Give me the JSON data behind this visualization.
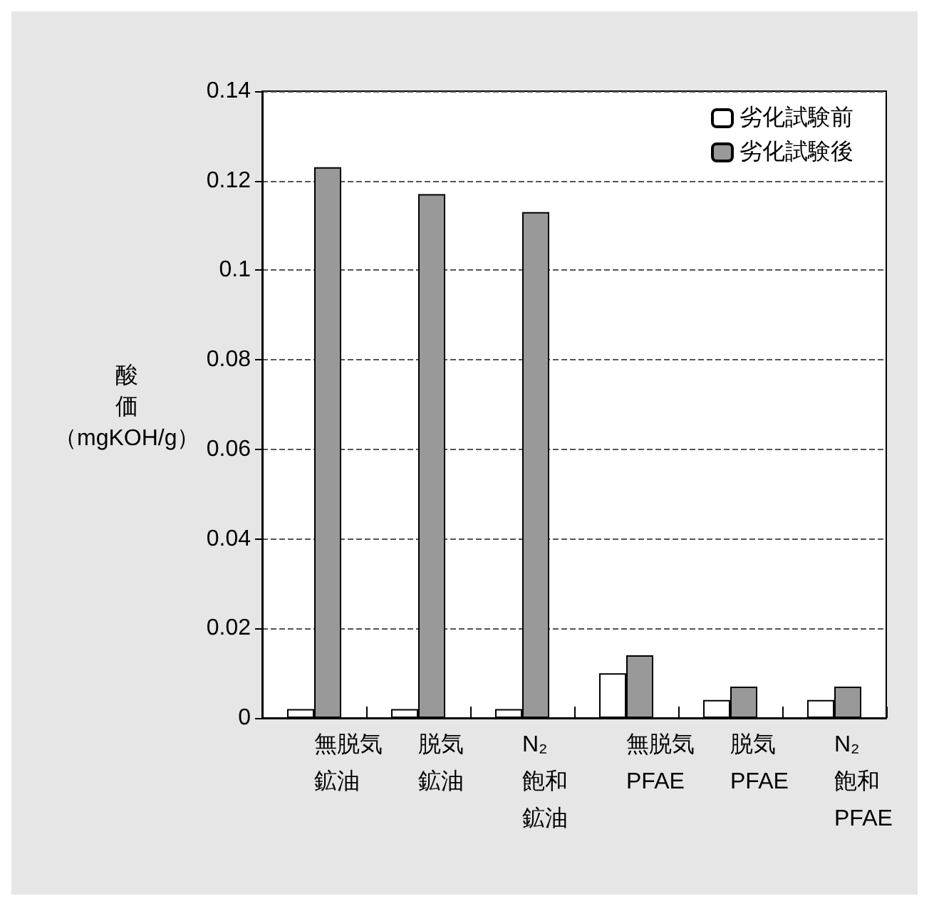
{
  "chart_data": {
    "type": "bar",
    "ylabel": "酸価（mgKOH/g）",
    "categories": [
      "無脱気鉱油",
      "脱気鉱油",
      "N₂飽和鉱油",
      "無脱気PFAE",
      "脱気PFAE",
      "N₂飽和PFAE"
    ],
    "series": [
      {
        "name": "劣化試験前",
        "color": "#ffffff",
        "values": [
          0.002,
          0.002,
          0.002,
          0.01,
          0.004,
          0.004
        ]
      },
      {
        "name": "劣化試験後",
        "color": "#999999",
        "values": [
          0.123,
          0.117,
          0.113,
          0.014,
          0.007,
          0.007
        ]
      }
    ],
    "ylim": [
      0,
      0.14
    ],
    "yticks": [
      0,
      0.02,
      0.04,
      0.06,
      0.08,
      0.1,
      0.12,
      0.14
    ],
    "grid": "y",
    "legend": "top right"
  }
}
